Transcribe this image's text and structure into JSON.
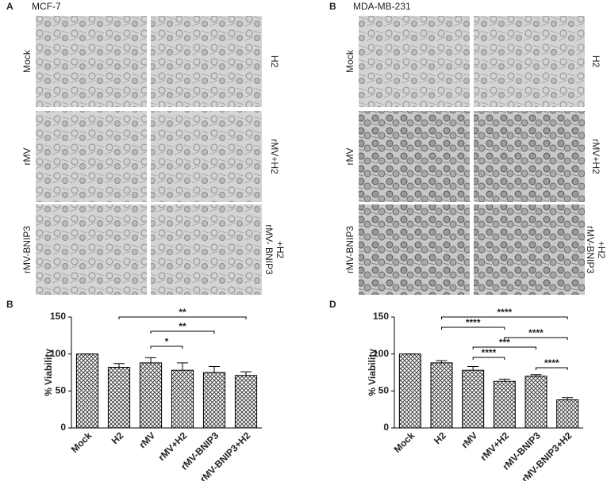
{
  "figure": {
    "panels": [
      {
        "letter": "A",
        "title": "MCF-7",
        "images": [
          [
            "Mock"
          ],
          [
            "H2"
          ],
          [
            "rMV"
          ],
          [
            "rMV+H2"
          ],
          [
            "rMV-BNIP3"
          ],
          [
            "rMV- BNIP3",
            "+H2"
          ]
        ]
      },
      {
        "letter": "B",
        "title": "MDA-MB-231",
        "images": [
          [
            "Mock"
          ],
          [
            "H2"
          ],
          [
            "rMV"
          ],
          [
            "rMV+H2"
          ],
          [
            "rMV-BNIP3"
          ],
          [
            "rMV-BNIP3",
            "+H2"
          ]
        ]
      }
    ]
  },
  "chart_data": [
    {
      "type": "bar",
      "letter": "B",
      "y_label": "% Viability",
      "categories": [
        "Mock",
        "H2",
        "rMV",
        "rMV+H2",
        "rMV-BNIP3",
        "rMV-BNIP3+H2"
      ],
      "values": [
        100,
        82,
        88,
        78,
        75,
        71
      ],
      "errors": [
        0,
        5,
        7,
        10,
        8,
        5
      ],
      "ylim": [
        0,
        150
      ],
      "yticks": [
        0,
        50,
        100,
        150
      ],
      "annotations": [
        {
          "label": "**",
          "from": "H2",
          "to": "rMV-BNIP3+H2"
        },
        {
          "label": "**",
          "from": "rMV",
          "to": "rMV-BNIP3"
        },
        {
          "label": "*",
          "from": "rMV",
          "to": "rMV+H2"
        }
      ]
    },
    {
      "type": "bar",
      "letter": "D",
      "y_label": "% Viability",
      "categories": [
        "Mock",
        "H2",
        "rMV",
        "rMV+H2",
        "rMV-BNIP3",
        "rMV-BNIP3+H2"
      ],
      "values": [
        100,
        88,
        78,
        63,
        70,
        38
      ],
      "errors": [
        0,
        3,
        5,
        3,
        2,
        3
      ],
      "ylim": [
        0,
        150
      ],
      "yticks": [
        0,
        50,
        100,
        150
      ],
      "annotations": [
        {
          "label": "****",
          "from": "H2",
          "to": "rMV-BNIP3+H2"
        },
        {
          "label": "****",
          "from": "H2",
          "to": "rMV+H2"
        },
        {
          "label": "****",
          "from": "rMV+H2",
          "to": "rMV-BNIP3+H2"
        },
        {
          "label": "***",
          "from": "rMV",
          "to": "rMV-BNIP3"
        },
        {
          "label": "****",
          "from": "rMV",
          "to": "rMV+H2"
        },
        {
          "label": "****",
          "from": "rMV-BNIP3",
          "to": "rMV-BNIP3+H2"
        }
      ]
    }
  ]
}
